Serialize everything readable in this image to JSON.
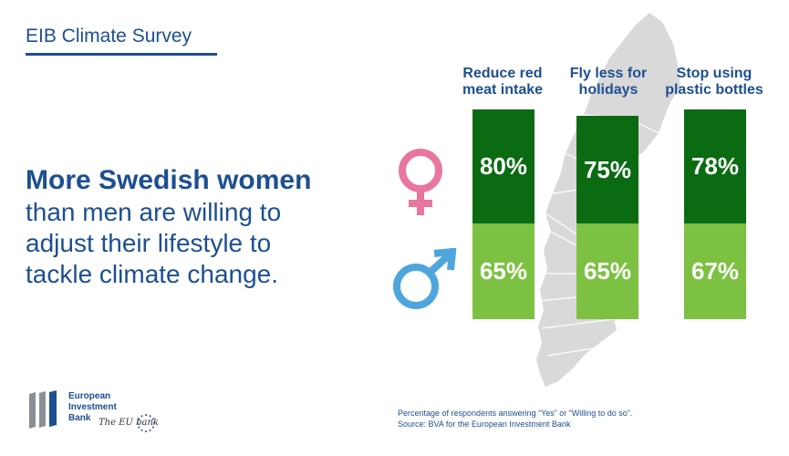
{
  "header": {
    "title": "EIB Climate Survey"
  },
  "headline": {
    "line1": "More Swedish women",
    "line2": "than men are willing to",
    "line3": "adjust their lifestyle to",
    "line4": "tackle climate change."
  },
  "chart_data": {
    "type": "bar",
    "categories": [
      "Reduce red meat intake",
      "Fly less for holidays",
      "Stop using plastic bottles"
    ],
    "series": [
      {
        "name": "",
        "values": [
          80,
          75,
          78
        ],
        "color": "#0a6b12",
        "icon": "female-symbol-icon"
      },
      {
        "name": "",
        "values": [
          65,
          65,
          67
        ],
        "color": "#7dc142",
        "icon": "male-symbol-icon"
      }
    ],
    "data_labels": {
      "women": [
        "80%",
        "75%",
        "78%"
      ],
      "men": [
        "65%",
        "65%",
        "67%"
      ]
    },
    "unit": "%"
  },
  "bars": [
    {
      "label_line1": "Reduce red",
      "label_line2": "meat intake",
      "women": "80%",
      "men": "65%"
    },
    {
      "label_line1": "Fly less for",
      "label_line2": "holidays",
      "women": "75%",
      "men": "65%"
    },
    {
      "label_line1": "Stop using",
      "label_line2": "plastic bottles",
      "women": "78%",
      "men": "67%"
    }
  ],
  "colors": {
    "brand_blue": "#1d4f91",
    "women_green": "#0a6b12",
    "men_green": "#7dc142",
    "female_symbol": "#e8769f",
    "male_symbol": "#4ea6dc",
    "map_gray": "#d9d9d9"
  },
  "logo": {
    "line1": "European",
    "line2": "Investment",
    "line3": "Bank",
    "tagline": "The EU bank"
  },
  "footnote": {
    "line1": "Percentage of respondents answering “Yes” or “Willing to do so”.",
    "line2": "Source: BVA for the European Investment Bank"
  }
}
